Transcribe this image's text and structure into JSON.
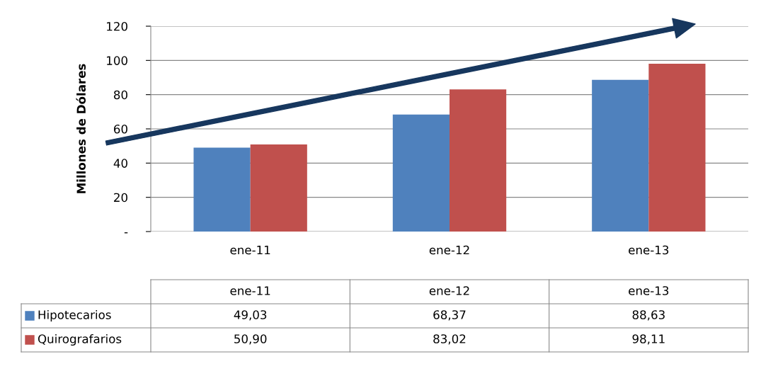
{
  "chart_data": {
    "type": "bar",
    "ylabel": "Millones de Dólares",
    "categories": [
      "ene-11",
      "ene-12",
      "ene-13"
    ],
    "series": [
      {
        "name": "Hipotecarios",
        "color": "#4f81bd",
        "values": [
          49.03,
          68.37,
          88.63
        ],
        "value_labels": [
          "49,03",
          "68,37",
          "88,63"
        ]
      },
      {
        "name": "Quirografarios",
        "color": "#c0504d",
        "values": [
          50.9,
          83.02,
          98.11
        ],
        "value_labels": [
          "50,90",
          "83,02",
          "98,11"
        ]
      }
    ],
    "ylim": [
      0,
      120
    ],
    "yticks": [
      {
        "value": 0,
        "label": "-"
      },
      20,
      40,
      60,
      80,
      100,
      120
    ],
    "grid": "y",
    "legend": "bottom left"
  }
}
